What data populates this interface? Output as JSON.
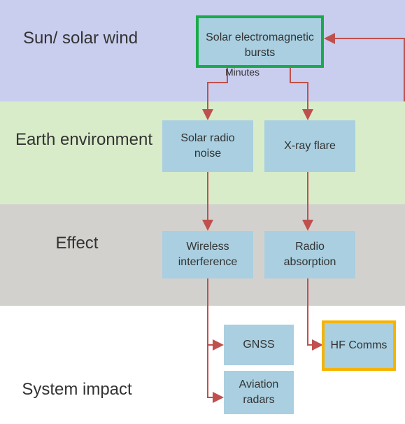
{
  "rows": [
    "Sun/ solar wind",
    "Earth environment",
    "Effect",
    "System impact"
  ],
  "nodes": [
    "Solar electromagnetic bursts",
    "Solar radio noise",
    "X-ray flare",
    "Wireless interference",
    "Radio absorption",
    "GNSS",
    "Aviation radars",
    "HF Comms"
  ],
  "timing": "Minutes"
}
